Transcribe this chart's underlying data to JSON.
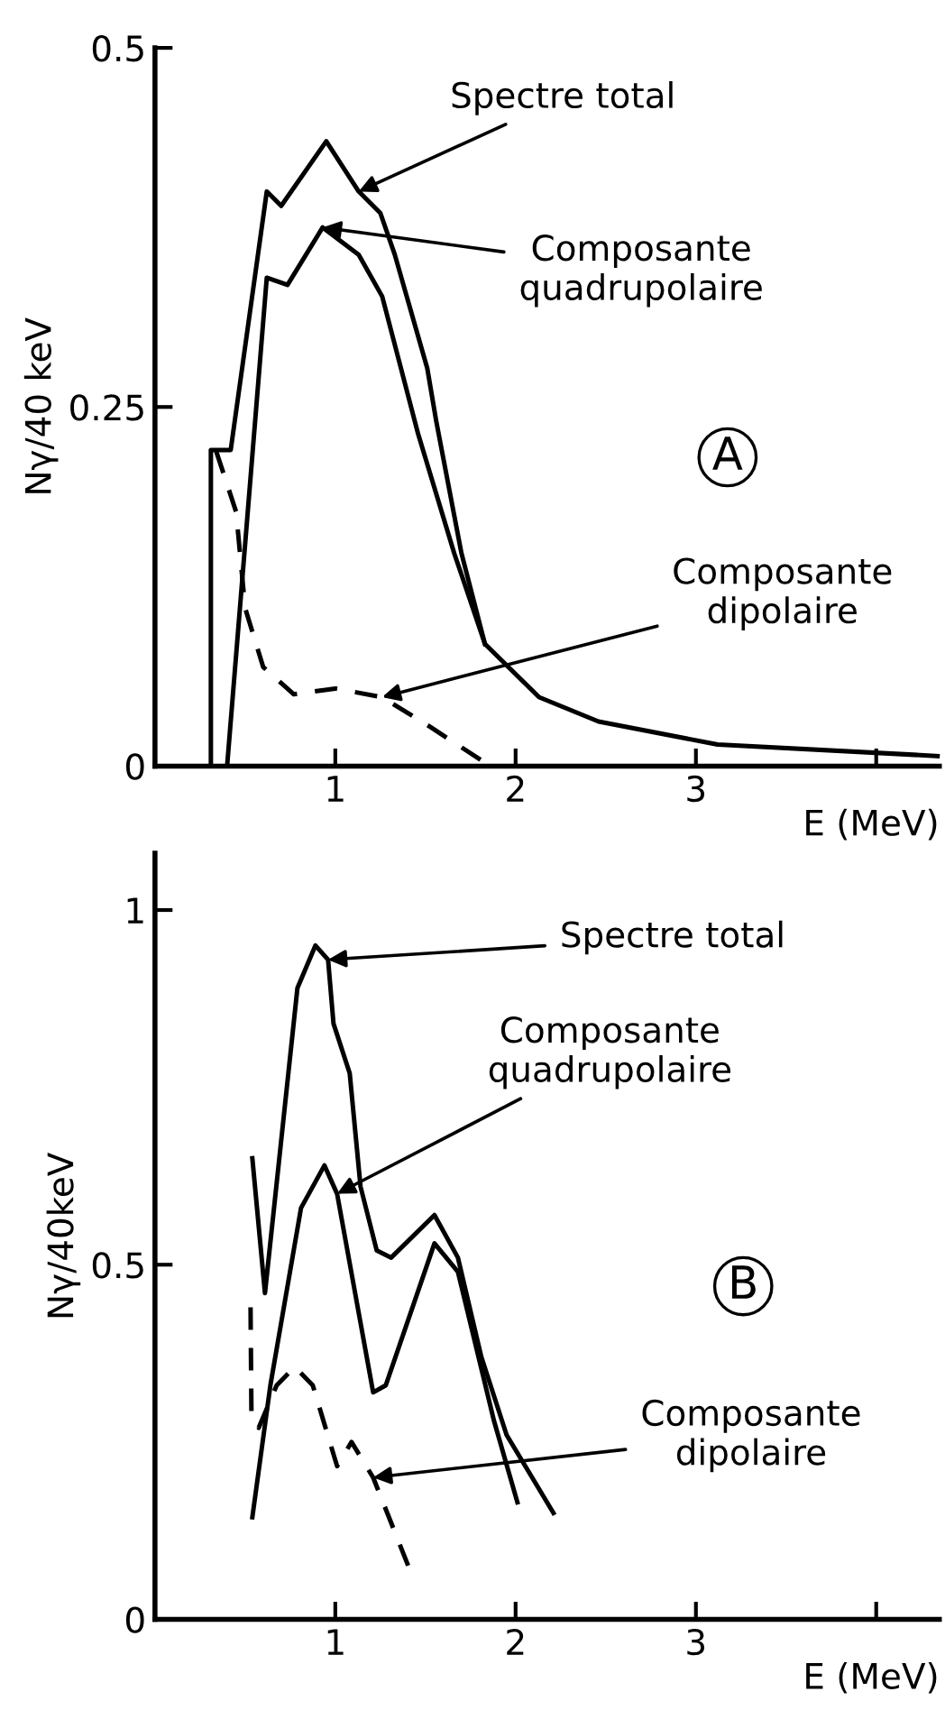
{
  "chart_data": [
    {
      "type": "line",
      "xlabel": "E (MeV)",
      "ylabel": "Nγ/40 keV",
      "xlim": [
        0,
        4.35
      ],
      "ylim": [
        0,
        0.5
      ],
      "xticks": [
        1,
        2,
        3,
        {
          "value": 4,
          "label": null
        }
      ],
      "yticks": [
        0,
        0.25,
        0.5
      ],
      "series": [
        {
          "color": "#000000",
          "line_style": "solid",
          "x": [
            0.31,
            0.31,
            0.42,
            0.62,
            0.7,
            0.95,
            1.13,
            1.25,
            1.33,
            1.51,
            1.56,
            1.7,
            1.83,
            2.13,
            2.46,
            3.12,
            4.34
          ],
          "values": [
            0,
            0.22,
            0.22,
            0.4,
            0.39,
            0.435,
            0.4,
            0.385,
            0.356,
            0.277,
            0.24,
            0.148,
            0.085,
            0.048,
            0.031,
            0.015,
            0.007
          ]
        },
        {
          "color": "#000000",
          "line_style": "solid",
          "x": [
            0.4,
            0.62,
            0.735,
            0.93,
            1.13,
            1.26,
            1.46,
            1.66,
            1.83
          ],
          "values": [
            0,
            0.34,
            0.335,
            0.375,
            0.356,
            0.327,
            0.231,
            0.148,
            0.085
          ]
        },
        {
          "color": "#000000",
          "line_style": "dashed",
          "x": [
            0.34,
            0.45,
            0.5,
            0.6,
            0.77,
            1.0,
            1.26,
            1.53,
            1.81
          ],
          "values": [
            0.219,
            0.177,
            0.11,
            0.069,
            0.05,
            0.054,
            0.048,
            0.027,
            0.004
          ]
        }
      ],
      "annotations": [
        {
          "text": "Spectre total",
          "x": 1.13,
          "y": 0.4
        },
        {
          "text": "Composante\nquadrupolaire",
          "x": 0.93,
          "y": 0.375
        },
        {
          "text": "Composante\ndipolaire",
          "x": 1.26,
          "y": 0.048
        },
        "A"
      ]
    },
    {
      "type": "line",
      "xlabel": "E (MeV)",
      "ylabel": "Nγ/40keV",
      "xlim": [
        0,
        4.35
      ],
      "ylim": [
        0,
        1.08
      ],
      "xticks": [
        1,
        2,
        3,
        {
          "value": 4,
          "label": null
        }
      ],
      "yticks": [
        0,
        0.5,
        1
      ],
      "series": [
        {
          "color": "#000000",
          "line_style": "solid",
          "x": [
            0.54,
            0.61,
            0.79,
            0.89,
            0.96,
            0.99,
            1.08,
            1.14,
            1.23,
            1.31,
            1.55,
            1.68,
            1.81,
            1.95,
            2.21
          ],
          "values": [
            0.65,
            0.46,
            0.89,
            0.95,
            0.93,
            0.84,
            0.77,
            0.61,
            0.52,
            0.51,
            0.57,
            0.51,
            0.37,
            0.26,
            0.15
          ]
        },
        {
          "color": "#000000",
          "line_style": "solid",
          "x": [
            0.54,
            0.64,
            0.81,
            0.94,
            1.01,
            1.21,
            1.28,
            1.55,
            1.68,
            1.88,
            2.01
          ],
          "values": [
            0.144,
            0.33,
            0.58,
            0.64,
            0.6,
            0.32,
            0.33,
            0.53,
            0.49,
            0.28,
            0.165
          ]
        },
        {
          "color": "#000000",
          "line_style": "dashed",
          "x": [
            0.53,
            0.535,
            0.575,
            0.675,
            0.775,
            0.875,
            1.01,
            1.09,
            1.21,
            1.41
          ],
          "values": [
            0.44,
            0.29,
            0.27,
            0.33,
            0.356,
            0.33,
            0.216,
            0.25,
            0.2,
            0.072
          ]
        }
      ],
      "annotations": [
        {
          "text": "Spectre total",
          "x": 0.96,
          "y": 0.93
        },
        {
          "text": "Composante\nquadrupolaire",
          "x": 1.01,
          "y": 0.6
        },
        {
          "text": "Composante\ndipolaire",
          "x": 1.21,
          "y": 0.2
        },
        "B"
      ]
    }
  ]
}
